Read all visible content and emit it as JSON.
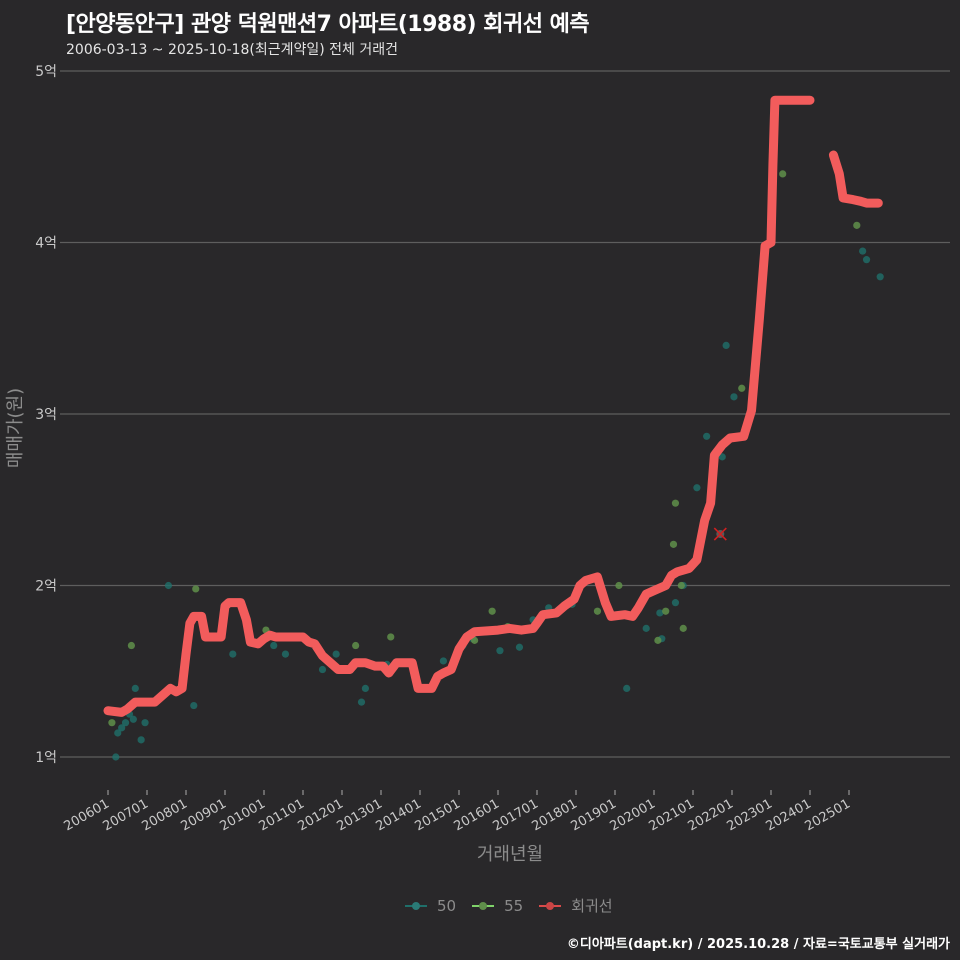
{
  "header": {
    "title": "[안양동안구] 관양 덕원맨션7 아파트(1988) 회귀선 예측",
    "subtitle": "2006-03-13 ~ 2025-10-18(최근계약일) 전체 거래건"
  },
  "caption": "©디아파트(dapt.kr) / 2025.10.28 / 자료=국토교통부 실거래가",
  "legend": {
    "items": [
      {
        "label": "50",
        "color": "#2a8a88"
      },
      {
        "label": "55",
        "color": "#7fd36a"
      },
      {
        "label": "회귀선",
        "color": "#f25c5c"
      }
    ]
  },
  "colors": {
    "background": "#29282a",
    "grid": "#5e5e5e",
    "series_50": "#1f6f6a",
    "series_55": "#5f8f4a",
    "regression": "#f25c5c"
  },
  "chart_data": {
    "type": "line",
    "title": "[안양동안구] 관양 덕원맨션7 아파트(1988) 회귀선 예측",
    "subtitle": "2006-03-13 ~ 2025-10-18(최근계약일) 전체 거래건",
    "xlabel": "거래년월",
    "ylabel": "매매가(원)",
    "x_ticks": [
      "200601",
      "200701",
      "200801",
      "200901",
      "201001",
      "201101",
      "201201",
      "201301",
      "201401",
      "201501",
      "201601",
      "201701",
      "201801",
      "201901",
      "202001",
      "202101",
      "202201",
      "202301",
      "202401",
      "202501"
    ],
    "y_ticks": [
      "1억",
      "2억",
      "3억",
      "4억",
      "5억"
    ],
    "y_tick_values": [
      1,
      2,
      3,
      4,
      5
    ],
    "ylim": [
      0.8,
      5.1
    ],
    "xlim": [
      2005.6,
      2026.2
    ],
    "grid": true,
    "legend_position": "bottom",
    "units": "억원",
    "series": [
      {
        "name": "회귀선",
        "type": "line",
        "segments": [
          [
            [
              2006.0,
              1.27
            ],
            [
              2006.35,
              1.26
            ],
            [
              2006.5,
              1.28
            ],
            [
              2006.7,
              1.32
            ],
            [
              2007.2,
              1.32
            ],
            [
              2007.45,
              1.37
            ],
            [
              2007.6,
              1.4
            ],
            [
              2007.75,
              1.38
            ],
            [
              2007.9,
              1.4
            ],
            [
              2008.0,
              1.6
            ],
            [
              2008.1,
              1.78
            ],
            [
              2008.2,
              1.82
            ],
            [
              2008.4,
              1.82
            ],
            [
              2008.5,
              1.7
            ],
            [
              2008.9,
              1.7
            ],
            [
              2009.0,
              1.88
            ],
            [
              2009.1,
              1.9
            ],
            [
              2009.4,
              1.9
            ],
            [
              2009.55,
              1.8
            ],
            [
              2009.65,
              1.67
            ],
            [
              2009.85,
              1.66
            ],
            [
              2010.0,
              1.69
            ],
            [
              2010.15,
              1.71
            ],
            [
              2010.3,
              1.7
            ],
            [
              2011.0,
              1.7
            ],
            [
              2011.15,
              1.67
            ],
            [
              2011.3,
              1.66
            ],
            [
              2011.5,
              1.59
            ],
            [
              2011.75,
              1.54
            ],
            [
              2011.9,
              1.51
            ],
            [
              2012.2,
              1.51
            ],
            [
              2012.35,
              1.55
            ],
            [
              2012.6,
              1.55
            ],
            [
              2012.85,
              1.53
            ],
            [
              2013.05,
              1.53
            ],
            [
              2013.2,
              1.49
            ],
            [
              2013.4,
              1.55
            ],
            [
              2013.8,
              1.55
            ],
            [
              2013.95,
              1.4
            ],
            [
              2014.3,
              1.4
            ],
            [
              2014.45,
              1.47
            ],
            [
              2014.6,
              1.49
            ],
            [
              2014.8,
              1.51
            ],
            [
              2015.0,
              1.63
            ],
            [
              2015.2,
              1.7
            ],
            [
              2015.4,
              1.73
            ],
            [
              2016.0,
              1.74
            ],
            [
              2016.3,
              1.75
            ],
            [
              2016.6,
              1.74
            ],
            [
              2016.9,
              1.75
            ],
            [
              2017.0,
              1.78
            ],
            [
              2017.15,
              1.83
            ],
            [
              2017.5,
              1.84
            ],
            [
              2017.7,
              1.88
            ],
            [
              2017.95,
              1.92
            ],
            [
              2018.1,
              2.0
            ],
            [
              2018.25,
              2.03
            ],
            [
              2018.55,
              2.05
            ],
            [
              2018.75,
              1.9
            ],
            [
              2018.9,
              1.82
            ],
            [
              2019.25,
              1.83
            ],
            [
              2019.45,
              1.82
            ],
            [
              2019.6,
              1.87
            ],
            [
              2019.8,
              1.95
            ],
            [
              2020.0,
              1.97
            ],
            [
              2020.3,
              2.0
            ],
            [
              2020.45,
              2.06
            ],
            [
              2020.6,
              2.08
            ],
            [
              2020.9,
              2.1
            ],
            [
              2021.1,
              2.15
            ],
            [
              2021.3,
              2.38
            ],
            [
              2021.45,
              2.48
            ],
            [
              2021.55,
              2.76
            ],
            [
              2021.75,
              2.82
            ],
            [
              2021.95,
              2.86
            ],
            [
              2022.3,
              2.87
            ],
            [
              2022.5,
              3.02
            ],
            [
              2022.7,
              3.55
            ],
            [
              2022.85,
              3.98
            ],
            [
              2023.0,
              4.0
            ],
            [
              2023.05,
              4.45
            ],
            [
              2023.1,
              4.83
            ],
            [
              2024.0,
              4.83
            ]
          ],
          [
            [
              2024.6,
              4.51
            ],
            [
              2024.75,
              4.4
            ],
            [
              2024.85,
              4.26
            ],
            [
              2025.1,
              4.25
            ],
            [
              2025.3,
              4.24
            ],
            [
              2025.45,
              4.23
            ],
            [
              2025.75,
              4.23
            ]
          ]
        ]
      },
      {
        "name": "50",
        "type": "scatter",
        "points": [
          [
            2006.2,
            1.0
          ],
          [
            2006.25,
            1.14
          ],
          [
            2006.35,
            1.17
          ],
          [
            2006.45,
            1.2
          ],
          [
            2006.55,
            1.25
          ],
          [
            2006.65,
            1.22
          ],
          [
            2006.7,
            1.4
          ],
          [
            2006.85,
            1.1
          ],
          [
            2006.95,
            1.2
          ],
          [
            2007.55,
            2.0
          ],
          [
            2008.2,
            1.3
          ],
          [
            2009.2,
            1.6
          ],
          [
            2010.25,
            1.65
          ],
          [
            2010.55,
            1.6
          ],
          [
            2011.5,
            1.51
          ],
          [
            2011.85,
            1.6
          ],
          [
            2012.5,
            1.32
          ],
          [
            2012.6,
            1.4
          ],
          [
            2013.15,
            1.54
          ],
          [
            2014.6,
            1.56
          ],
          [
            2015.1,
            1.65
          ],
          [
            2015.35,
            1.69
          ],
          [
            2016.05,
            1.62
          ],
          [
            2016.55,
            1.64
          ],
          [
            2016.9,
            1.8
          ],
          [
            2017.3,
            1.87
          ],
          [
            2017.9,
            1.89
          ],
          [
            2019.3,
            1.4
          ],
          [
            2019.8,
            1.75
          ],
          [
            2020.15,
            1.84
          ],
          [
            2020.55,
            1.9
          ],
          [
            2020.75,
            2.0
          ],
          [
            2021.1,
            2.57
          ],
          [
            2021.35,
            2.87
          ],
          [
            2021.75,
            2.75
          ],
          [
            2021.85,
            3.4
          ],
          [
            2022.05,
            3.1
          ],
          [
            2025.35,
            3.95
          ],
          [
            2025.45,
            3.9
          ],
          [
            2025.8,
            3.8
          ],
          [
            2020.2,
            1.69
          ]
        ]
      },
      {
        "name": "55",
        "type": "scatter",
        "points": [
          [
            2006.1,
            1.2
          ],
          [
            2006.6,
            1.65
          ],
          [
            2008.25,
            1.98
          ],
          [
            2010.05,
            1.74
          ],
          [
            2012.35,
            1.65
          ],
          [
            2013.25,
            1.7
          ],
          [
            2015.4,
            1.68
          ],
          [
            2015.85,
            1.85
          ],
          [
            2016.25,
            1.76
          ],
          [
            2018.55,
            1.85
          ],
          [
            2019.1,
            2.0
          ],
          [
            2020.1,
            1.68
          ],
          [
            2020.3,
            1.85
          ],
          [
            2020.5,
            2.24
          ],
          [
            2020.55,
            2.48
          ],
          [
            2020.7,
            2.0
          ],
          [
            2020.75,
            1.75
          ],
          [
            2022.25,
            3.15
          ],
          [
            2023.3,
            4.4
          ],
          [
            2025.2,
            4.1
          ]
        ]
      },
      {
        "name": "predicted-marker",
        "type": "marker",
        "symbol": "x",
        "points": [
          [
            2021.7,
            2.3
          ]
        ]
      }
    ]
  }
}
